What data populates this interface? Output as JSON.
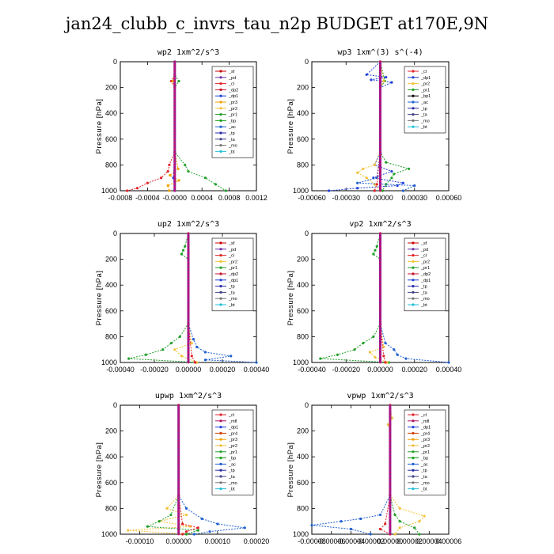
{
  "title": "jan24_clubb_c_invrs_tau_n2p  BUDGET at170E,9N",
  "colors": {
    "_sf": "#cc0000",
    "_pd": "#6a2fa0",
    "_cl": "#e0242a",
    "_dp2": "#c60f2b",
    "_dp1": "#2040d8",
    "_pr3": "#f0a000",
    "_pr2": "#f2c23a",
    "_pr1": "#22a02a",
    "_bp": "#18a018",
    "_ac": "#1f5fd0",
    "_tp": "#2a2aa8",
    "_ta": "#444488",
    "_mo": "#777777",
    "_bt": "#20c0d8",
    "_mfl": "#b01060",
    "_pr4": "#d04000",
    "_sum": "#8a1e9a"
  },
  "chart_data": [
    {
      "type": "line",
      "title": "wp2   1xm^2/s^3",
      "ylabel": "Pressure [hPa]",
      "xlim": [
        -0.0008,
        0.0012
      ],
      "ylim": [
        1000,
        0
      ],
      "xticks": [
        -0.0008,
        -0.0004,
        0,
        0.0004,
        0.0008,
        0.0012
      ],
      "xtick_labels": [
        "-0.0008",
        "-0.0004",
        "-0.0000",
        "0.0004",
        "0.0008",
        "0.0012"
      ],
      "yticks": [
        0,
        200,
        400,
        600,
        800,
        1000
      ],
      "ytick_labels": [
        "0",
        "200",
        "400",
        "600",
        "800",
        "1000"
      ],
      "legend": [
        "_sf",
        "_pd",
        "_cl",
        "_dp2",
        "_dp1",
        "_pr3",
        "_pr2",
        "_pr1",
        "_bp",
        "_ac",
        "_tp",
        "_ta",
        "_mo",
        "_bt"
      ],
      "series": [
        {
          "key": "_pr1",
          "p": [
            0,
            100,
            150,
            200,
            700,
            800,
            850,
            900,
            950,
            1000
          ],
          "v": [
            0,
            0,
            6e-05,
            0,
            0,
            0.00015,
            0.0002,
            0.00045,
            0.0006,
            0.00075
          ]
        },
        {
          "key": "_cl",
          "p": [
            0,
            100,
            150,
            200,
            700,
            800,
            850,
            900,
            940,
            980,
            1000
          ],
          "v": [
            0,
            0,
            -5e-05,
            0,
            0,
            -8e-05,
            -0.0001,
            -0.0002,
            -0.0004,
            -0.00055,
            -0.0007
          ]
        },
        {
          "key": "_pr3",
          "p": [
            0,
            100,
            150,
            200,
            700,
            830,
            880,
            920,
            960,
            1000
          ],
          "v": [
            0,
            0,
            -3e-05,
            0,
            0,
            5e-05,
            -7e-05,
            6e-05,
            -0.0001,
            -8e-05
          ]
        },
        {
          "key": "_dp1",
          "p": [
            0,
            700,
            900,
            1000
          ],
          "v": [
            0,
            0,
            -2e-05,
            0
          ]
        },
        {
          "key": "_sum",
          "p": [
            0,
            1000
          ],
          "v": [
            0,
            0
          ]
        }
      ]
    },
    {
      "type": "line",
      "title": "wp3   1xm^(3) s^(-4)",
      "ylabel": "Pressure [hPa]",
      "xlim": [
        -0.0006,
        0.0006
      ],
      "ylim": [
        1000,
        0
      ],
      "xticks": [
        -0.0006,
        -0.0003,
        0,
        0.0003,
        0.0006
      ],
      "xtick_labels": [
        "-0.00060",
        "-0.00030",
        "0.00000",
        "0.00030",
        "0.00060"
      ],
      "yticks": [
        0,
        200,
        400,
        600,
        800,
        1000
      ],
      "ytick_labels": [
        "0",
        "200",
        "400",
        "600",
        "800",
        "1000"
      ],
      "legend": [
        "_cl",
        "_dp1",
        "_pr2",
        "_pr1",
        "_bp1",
        "_ac",
        "_tp",
        "_ta",
        "_mo",
        "_bt"
      ],
      "series": [
        {
          "key": "_dp1",
          "p": [
            0,
            100,
            120,
            140,
            160,
            200,
            700,
            800,
            850,
            900,
            940,
            960,
            980,
            1000
          ],
          "v": [
            0,
            -0.00012,
            5e-05,
            -8e-05,
            0.0001,
            0,
            0,
            -5e-05,
            0.0001,
            -6e-05,
            0.0002,
            0.00015,
            -0.0002,
            -0.00045
          ]
        },
        {
          "key": "_pr1",
          "p": [
            0,
            150,
            200,
            700,
            780,
            830,
            870,
            900,
            950,
            1000
          ],
          "v": [
            0,
            4e-05,
            0,
            0,
            5e-05,
            0.00025,
            0.00012,
            0.0001,
            5e-05,
            2e-05
          ]
        },
        {
          "key": "_pr2",
          "p": [
            0,
            150,
            200,
            700,
            800,
            830,
            860,
            900,
            950,
            1000
          ],
          "v": [
            0,
            3e-05,
            0,
            0,
            -5e-05,
            -0.00015,
            -0.0002,
            -0.00012,
            -5e-05,
            0
          ]
        },
        {
          "key": "_ac",
          "p": [
            0,
            700,
            900,
            940,
            960,
            1000
          ],
          "v": [
            0,
            0,
            -3e-05,
            -0.0002,
            0.0003,
            0.0002
          ]
        },
        {
          "key": "_cl",
          "p": [
            0,
            700,
            950,
            1000
          ],
          "v": [
            0,
            0,
            -3e-05,
            -5e-05
          ]
        },
        {
          "key": "_sum",
          "p": [
            0,
            1000
          ],
          "v": [
            0,
            0
          ]
        }
      ]
    },
    {
      "type": "line",
      "title": "up2   1xm^2/s^3",
      "ylabel": "Pressure [hPa]",
      "xlim": [
        -0.0004,
        0.0004
      ],
      "ylim": [
        1000,
        0
      ],
      "xticks": [
        -0.0004,
        -0.0002,
        0,
        0.0002,
        0.0004
      ],
      "xtick_labels": [
        "-0.00040",
        "-0.00020",
        "0.00000",
        "0.00020",
        "0.00040"
      ],
      "yticks": [
        0,
        200,
        400,
        600,
        800,
        1000
      ],
      "ytick_labels": [
        "0",
        "200",
        "400",
        "600",
        "800",
        "1000"
      ],
      "legend": [
        "_sf",
        "_pd",
        "_cl",
        "_pr2",
        "_pr1",
        "_dp2",
        "_dp1",
        "_tp",
        "_ta",
        "_mo",
        "_bt"
      ],
      "series": [
        {
          "key": "_pr1",
          "p": [
            0,
            100,
            130,
            160,
            200,
            700,
            800,
            850,
            900,
            940,
            970,
            1000
          ],
          "v": [
            0,
            -2e-05,
            -3e-05,
            -4e-05,
            0,
            0,
            -5e-05,
            -0.0001,
            -0.00015,
            -0.00025,
            -0.00035,
            5e-05
          ]
        },
        {
          "key": "_ac",
          "p": [
            0,
            700,
            820,
            880,
            920,
            950,
            980,
            1000
          ],
          "v": [
            0,
            0,
            3e-05,
            5e-05,
            0.0001,
            0.00025,
            0.0001,
            0.0004
          ]
        },
        {
          "key": "_pr2",
          "p": [
            0,
            700,
            850,
            900,
            950,
            1000
          ],
          "v": [
            0,
            0,
            2e-05,
            -8e-05,
            -4e-05,
            5e-05
          ]
        },
        {
          "key": "_cl",
          "p": [
            0,
            700,
            950,
            1000
          ],
          "v": [
            0,
            0,
            2e-05,
            4e-05
          ]
        },
        {
          "key": "_sum",
          "p": [
            0,
            1000
          ],
          "v": [
            0,
            0
          ]
        }
      ]
    },
    {
      "type": "line",
      "title": "vp2   1xm^2/s^3",
      "ylabel": "Pressure [hPa]",
      "xlim": [
        -0.0004,
        0.0004
      ],
      "ylim": [
        1000,
        0
      ],
      "xticks": [
        -0.0004,
        -0.0002,
        0,
        0.0002,
        0.0004
      ],
      "xtick_labels": [
        "-0.00040",
        "-0.00020",
        "0.00000",
        "0.00020",
        "0.00040"
      ],
      "yticks": [
        0,
        200,
        400,
        600,
        800,
        1000
      ],
      "ytick_labels": [
        "0",
        "200",
        "400",
        "600",
        "800",
        "1000"
      ],
      "legend": [
        "_sf",
        "_pd",
        "_cl",
        "_pr2",
        "_pr1",
        "_dp2",
        "_dp1",
        "_tp",
        "_ta",
        "_mo",
        "_bt"
      ],
      "series": [
        {
          "key": "_pr1",
          "p": [
            0,
            100,
            130,
            160,
            200,
            700,
            800,
            850,
            900,
            940,
            970,
            1000
          ],
          "v": [
            0,
            -2e-05,
            -3e-05,
            -4e-05,
            0,
            0,
            -4e-05,
            -0.0001,
            -0.00015,
            -0.00025,
            -0.00035,
            5e-05
          ]
        },
        {
          "key": "_ac",
          "p": [
            0,
            700,
            850,
            900,
            940,
            970,
            1000
          ],
          "v": [
            0,
            0,
            3e-05,
            8e-05,
            0.0001,
            0.00015,
            0.0004
          ]
        },
        {
          "key": "_pr2",
          "p": [
            0,
            700,
            880,
            920,
            960,
            1000
          ],
          "v": [
            0,
            0,
            2e-05,
            -6e-05,
            -3e-05,
            4e-05
          ]
        },
        {
          "key": "_cl",
          "p": [
            0,
            700,
            950,
            1000
          ],
          "v": [
            0,
            0,
            2e-05,
            3e-05
          ]
        },
        {
          "key": "_sum",
          "p": [
            0,
            1000
          ],
          "v": [
            0,
            0
          ]
        }
      ]
    },
    {
      "type": "line",
      "title": "upwp   1xm^2/s^3",
      "ylabel": "Pressure [hPa]",
      "xlim": [
        -0.00015,
        0.0002
      ],
      "ylim": [
        1000,
        0
      ],
      "xticks": [
        -0.0001,
        0,
        0.0001,
        0.0002
      ],
      "xtick_labels": [
        "-0.00010",
        "0.00000",
        "0.00010",
        "0.00020"
      ],
      "yticks": [
        0,
        200,
        400,
        600,
        800,
        1000
      ],
      "ytick_labels": [
        "0",
        "200",
        "400",
        "600",
        "800",
        "1000"
      ],
      "legend": [
        "_cl",
        "_mfl",
        "_dp1",
        "_pr4",
        "_pr3",
        "_pr2",
        "_pr1",
        "_bp",
        "_ac",
        "_tp",
        "_ta",
        "_mo",
        "_bt"
      ],
      "series": [
        {
          "key": "_pr2",
          "p": [
            0,
            700,
            800,
            850,
            900,
            940,
            970,
            1000
          ],
          "v": [
            0,
            0,
            -3e-05,
            2e-05,
            -5e-05,
            3e-05,
            -0.00013,
            2e-05
          ]
        },
        {
          "key": "_ac",
          "p": [
            0,
            700,
            800,
            880,
            920,
            950,
            980,
            1000
          ],
          "v": [
            0,
            0,
            2e-05,
            6e-05,
            0.0001,
            0.00017,
            8e-05,
            4e-05
          ]
        },
        {
          "key": "_pr1",
          "p": [
            0,
            700,
            850,
            900,
            940,
            970,
            1000
          ],
          "v": [
            0,
            0,
            -2e-05,
            -5e-05,
            -8e-05,
            5e-05,
            2e-05
          ]
        },
        {
          "key": "_cl",
          "p": [
            0,
            700,
            920,
            950,
            980,
            1000
          ],
          "v": [
            0,
            0,
            1e-05,
            5e-05,
            2e-05,
            1e-05
          ]
        },
        {
          "key": "_sum",
          "p": [
            0,
            1000
          ],
          "v": [
            0,
            0
          ]
        }
      ]
    },
    {
      "type": "line",
      "title": "vpwp   1xm^2/s^3",
      "ylabel": "Pressure [hPa]",
      "xlim": [
        -8e-05,
        6e-05
      ],
      "ylim": [
        1000,
        0
      ],
      "xticks": [
        -8e-05,
        -6e-05,
        -4e-05,
        -2e-05,
        0,
        2e-05,
        4e-05,
        6e-05
      ],
      "xtick_labels": [
        "-0.00008",
        "-0.00006",
        "-0.00004",
        "-0.00002",
        "0.00000",
        "0.00002",
        "0.00004",
        "0.00006"
      ],
      "yticks": [
        0,
        200,
        400,
        600,
        800,
        1000
      ],
      "ytick_labels": [
        "0",
        "200",
        "400",
        "600",
        "800",
        "1000"
      ],
      "legend": [
        "_cl",
        "_mfl",
        "_dp1",
        "_pr4",
        "_pr3",
        "_pr2",
        "_pr1",
        "_bp",
        "_ac",
        "_tp",
        "_ta",
        "_mo",
        "_bt"
      ],
      "series": [
        {
          "key": "_pr2",
          "p": [
            0,
            100,
            150,
            200,
            700,
            800,
            860,
            900,
            950,
            1000
          ],
          "v": [
            0,
            2e-06,
            -2e-06,
            0,
            0,
            1e-05,
            3.5e-05,
            3e-05,
            1e-05,
            5e-06
          ]
        },
        {
          "key": "_ac",
          "p": [
            0,
            700,
            850,
            880,
            900,
            930,
            960,
            1000
          ],
          "v": [
            0,
            0,
            -1e-05,
            -3e-05,
            -5e-05,
            -8e-05,
            -4e-05,
            -2e-05
          ]
        },
        {
          "key": "_pr1",
          "p": [
            0,
            700,
            850,
            900,
            950,
            1000
          ],
          "v": [
            0,
            0,
            5e-06,
            1e-05,
            2.5e-05,
            3e-05
          ]
        },
        {
          "key": "_cl",
          "p": [
            0,
            700,
            920,
            960,
            1000
          ],
          "v": [
            0,
            0,
            -5e-06,
            -1e-05,
            0
          ]
        },
        {
          "key": "_sum",
          "p": [
            0,
            1000
          ],
          "v": [
            0,
            0
          ]
        }
      ]
    }
  ]
}
